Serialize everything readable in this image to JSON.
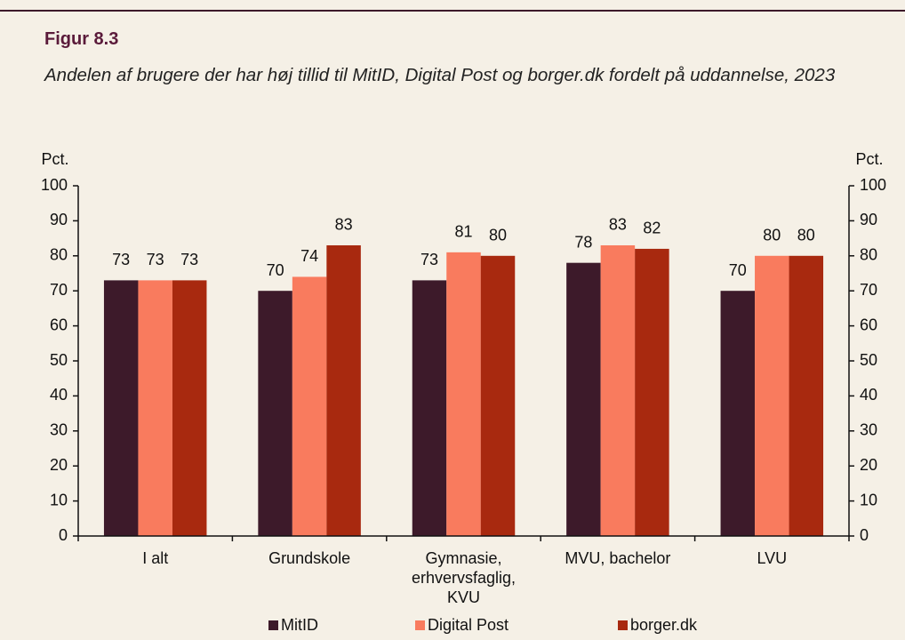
{
  "chart_data": {
    "type": "bar",
    "title": "Figur 8.3",
    "subtitle": "Andelen af brugere der har høj tillid til MitID, Digital Post og borger.dk fordelt på uddannelse, 2023",
    "ylabel": "Pct.",
    "y2label": "Pct.",
    "categories": [
      "I alt",
      "Grundskole",
      "Gymnasie,\nerhvervsfaglig,\nKVU",
      "MVU, bachelor",
      "LVU"
    ],
    "series": [
      {
        "name": "MitID",
        "color": "#3d1a2a",
        "values": [
          73,
          70,
          73,
          78,
          70
        ]
      },
      {
        "name": "Digital Post",
        "color": "#f97b5e",
        "values": [
          73,
          74,
          81,
          83,
          80
        ]
      },
      {
        "name": "borger.dk",
        "color": "#a8290f",
        "values": [
          73,
          83,
          80,
          82,
          80
        ]
      }
    ],
    "ylim": [
      0,
      100
    ],
    "yticks": [
      0,
      10,
      20,
      30,
      40,
      50,
      60,
      70,
      80,
      90,
      100
    ],
    "y2lim": [
      0,
      100
    ],
    "y2ticks": [
      0,
      10,
      20,
      30,
      40,
      50,
      60,
      70,
      80,
      90,
      100
    ],
    "legend": "bottom"
  }
}
